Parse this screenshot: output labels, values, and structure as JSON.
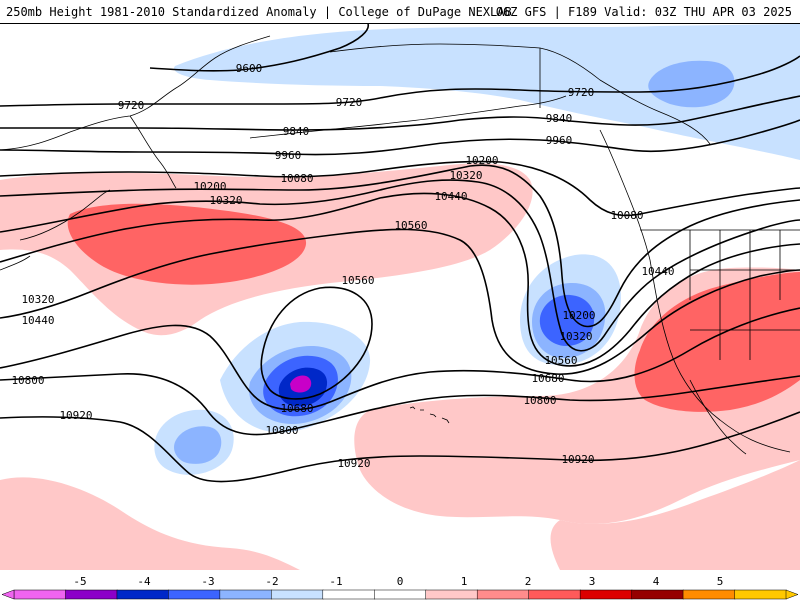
{
  "title": {
    "left": "250mb Height 1981-2010 Standardized Anomaly | College of DuPage NEXLAB",
    "right": "06Z GFS | F189 Valid: 03Z THU APR 03 2025"
  },
  "contour_labels": [
    "9600",
    "9720",
    "9720",
    "9720",
    "9840",
    "9840",
    "9960",
    "9960",
    "10080",
    "10080",
    "10200",
    "10200",
    "10200",
    "10320",
    "10320",
    "10320",
    "10320",
    "10440",
    "10440",
    "10440",
    "10560",
    "10560",
    "10560",
    "10680",
    "10680",
    "10800",
    "10800",
    "10800",
    "10920",
    "10920",
    "10920"
  ],
  "colorbar": {
    "ticks": [
      "-5",
      "-4",
      "-3",
      "-2",
      "-1",
      "0",
      "1",
      "2",
      "3",
      "4",
      "5"
    ],
    "colors": [
      "#f064f0",
      "#8c00c8",
      "#0028c8",
      "#3c64ff",
      "#8cb4ff",
      "#c8e1ff",
      "#ffffff",
      "#ffffff",
      "#ffc8c8",
      "#ff8c8c",
      "#ff5a5a",
      "#dc0000",
      "#960000",
      "#ff8c00",
      "#ffc800"
    ]
  },
  "colors": {
    "neg_light": "#c8e1ff",
    "neg_mid": "#8cb4ff",
    "neg_strong": "#3c64ff",
    "neg_deep": "#0028c8",
    "neg_extreme": "#c800c8",
    "pos_light": "#ffc8c8",
    "pos_mid": "#ff8c8c",
    "pos_strong": "#ff6464",
    "coast": "#000000"
  },
  "icons": {
    "map": "geographic-map",
    "colorbar": "anomaly-colorbar"
  }
}
